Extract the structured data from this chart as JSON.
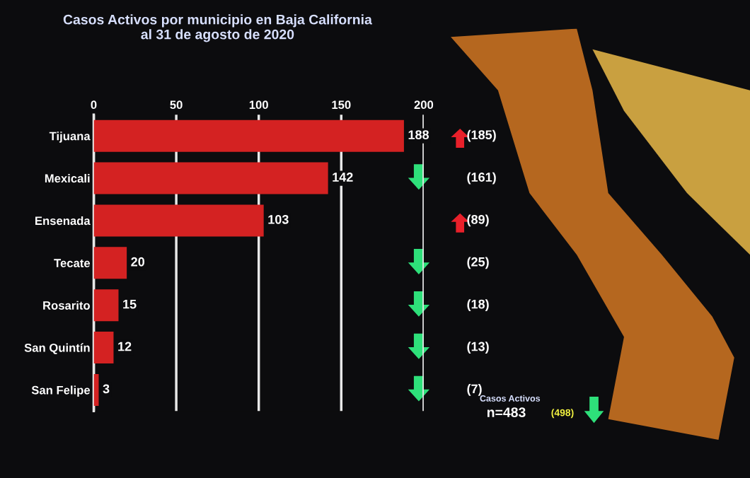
{
  "chart_data": {
    "type": "bar",
    "orientation": "horizontal",
    "title": "Casos Activos por municipio en Baja California\nal 31 de agosto de 2020",
    "categories": [
      "Tijuana",
      "Mexicali",
      "Ensenada",
      "Tecate",
      "Rosarito",
      "San Quintín",
      "San Felipe"
    ],
    "values": [
      188,
      142,
      103,
      20,
      15,
      12,
      3
    ],
    "color": "#d42222",
    "data_labels": true,
    "xlim": [
      0,
      200
    ],
    "xticks": [
      0,
      50,
      100,
      150,
      200
    ],
    "grid": "x",
    "annotations": [
      "(185)",
      "(161)",
      "(89)",
      "(25)",
      "(18)",
      "(13)",
      "(7)",
      "Casos Activos",
      "n=483",
      "(498)"
    ]
  }
}
